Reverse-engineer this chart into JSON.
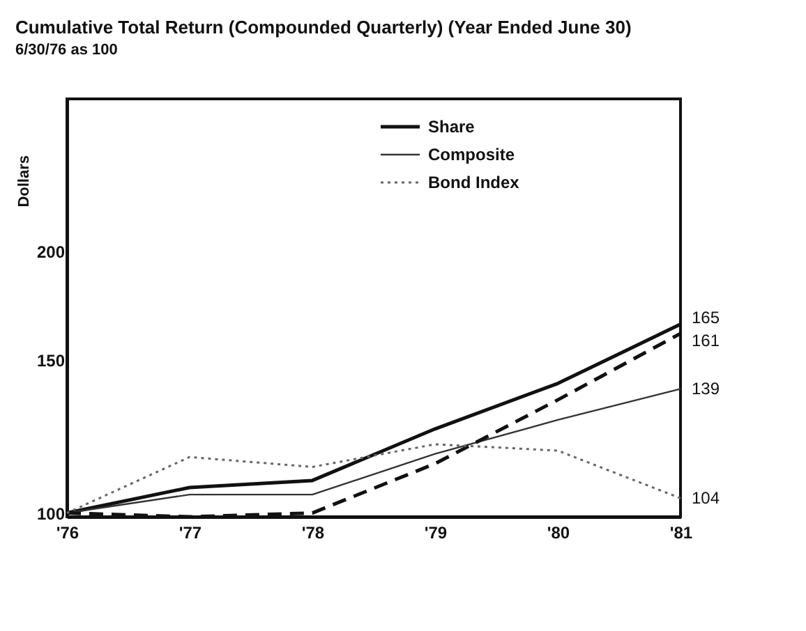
{
  "chart_data": {
    "type": "line",
    "title": "Cumulative Total Return (Compounded Quarterly) (Year Ended June 30)",
    "subtitle": "6/30/76 as 100",
    "ylabel": "Dollars",
    "categories": [
      "'76",
      "'77",
      "'78",
      "'79",
      "'80",
      "'81"
    ],
    "series": [
      {
        "name": "Share",
        "color": "#111111",
        "line_style": "solid",
        "values": [
          100,
          107,
          109,
          125,
          141,
          165
        ],
        "value_labels": [
          null,
          null,
          null,
          null,
          null,
          "165"
        ]
      },
      {
        "name": "Composite",
        "color": "#333333",
        "line_style": "solid",
        "values": [
          100,
          105,
          105,
          117,
          128,
          139
        ],
        "value_labels": [
          null,
          null,
          null,
          null,
          null,
          "139"
        ]
      },
      {
        "color": "#111111",
        "line_style": "dashed",
        "values": [
          100,
          99,
          100,
          114,
          135,
          161
        ],
        "value_labels": [
          null,
          null,
          null,
          null,
          null,
          "161"
        ]
      },
      {
        "name": "Bond Index",
        "color": "#666666",
        "line_style": "dotted",
        "values": [
          100,
          116,
          113,
          120,
          118,
          104
        ],
        "value_labels": [
          null,
          null,
          null,
          null,
          null,
          "104"
        ]
      }
    ],
    "log": "y",
    "ylim": [
      99,
      300
    ],
    "yticks": [
      100,
      150,
      200
    ],
    "grid": false,
    "legend": "top right"
  }
}
